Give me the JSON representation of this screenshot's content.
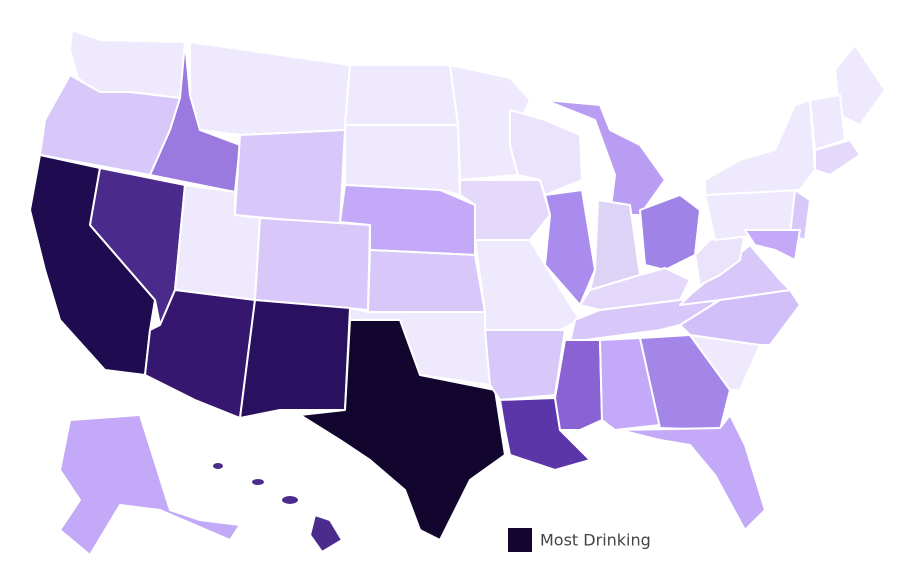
{
  "legend": {
    "label": "Most Drinking",
    "color": "#14062f"
  }
}
